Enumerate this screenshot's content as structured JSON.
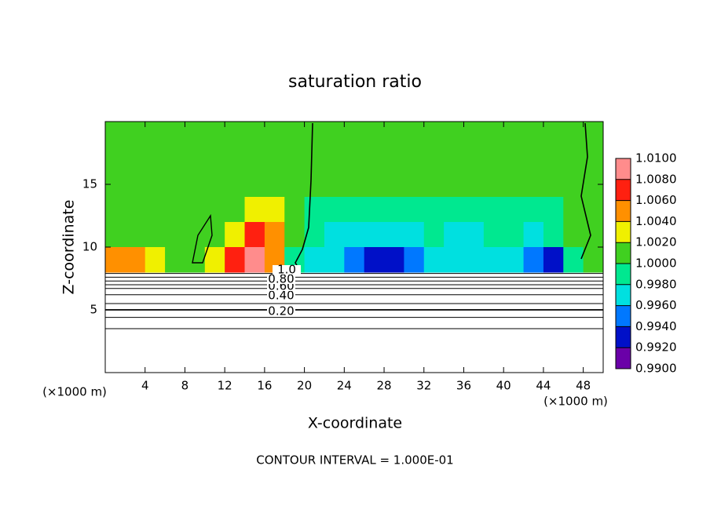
{
  "chart_data": {
    "type": "contour",
    "title": "saturation ratio",
    "x_label": "X-coordinate",
    "y_label": "Z-coordinate",
    "x_unit_left": "(×1000 m)",
    "x_unit_right": "(×1000 m)",
    "footnote": "CONTOUR INTERVAL = 1.000E-01",
    "xlim": [
      0,
      50
    ],
    "ylim": [
      0,
      20
    ],
    "xticks": [
      4,
      8,
      12,
      16,
      20,
      24,
      28,
      32,
      36,
      40,
      44,
      48
    ],
    "yticks": [
      5,
      10,
      15
    ],
    "x": [
      1,
      3,
      5,
      7,
      9,
      11,
      13,
      15,
      17,
      19,
      21,
      23,
      25,
      27,
      29,
      31,
      33,
      35,
      37,
      39,
      41,
      43,
      45,
      47,
      49
    ],
    "y": [
      19,
      17,
      15,
      13,
      11,
      9
    ],
    "z": [
      [
        1.0005,
        1.0005,
        1.0005,
        1.0005,
        1.0005,
        1.0005,
        1.0005,
        1.0005,
        1.0005,
        1.0005,
        1.0005,
        1.0005,
        1.0005,
        1.0005,
        1.0005,
        1.0005,
        1.0005,
        1.0005,
        1.0005,
        1.0005,
        1.0005,
        1.0005,
        1.0005,
        1.0005,
        1.0005
      ],
      [
        1.0005,
        1.0005,
        1.0005,
        1.0005,
        1.0005,
        1.0005,
        1.0005,
        1.0005,
        1.0005,
        1.0005,
        1.0005,
        1.0005,
        1.0005,
        1.0005,
        1.0005,
        1.0005,
        1.0005,
        1.0005,
        1.0005,
        1.0005,
        1.0005,
        1.0005,
        1.0005,
        1.0005,
        1.0005
      ],
      [
        1.0005,
        1.0005,
        1.0005,
        1.0005,
        1.0005,
        1.0005,
        1.001,
        1.0015,
        1.001,
        1.0005,
        1.0005,
        1.0005,
        1.0005,
        1.0005,
        1.0005,
        1.0005,
        1.0005,
        1.0005,
        1.0005,
        1.0005,
        1.0005,
        1.0005,
        1.0005,
        1.0005,
        1.0005
      ],
      [
        1.0005,
        1.0005,
        1.0005,
        1.0005,
        1.0005,
        1.0005,
        1.001,
        1.003,
        1.002,
        1.0005,
        0.9995,
        0.9985,
        0.9985,
        0.9985,
        0.9985,
        0.9995,
        0.9995,
        0.9985,
        0.9995,
        0.9995,
        0.9995,
        0.9995,
        0.9995,
        1.0005,
        1.0005
      ],
      [
        1.0015,
        1.001,
        1.0005,
        1.0005,
        1.0005,
        1.001,
        1.003,
        1.007,
        1.004,
        1.0005,
        0.9985,
        0.9975,
        0.9975,
        0.997,
        0.9975,
        0.9975,
        0.9985,
        0.9975,
        0.9975,
        0.9985,
        0.9985,
        0.9975,
        0.9985,
        1.0005,
        1.0005
      ],
      [
        1.005,
        1.004,
        1.003,
        1.0015,
        1.0005,
        1.002,
        1.006,
        1.0085,
        1.005,
        0.999,
        0.9965,
        0.996,
        0.995,
        0.9935,
        0.993,
        0.9945,
        0.9965,
        0.997,
        0.996,
        0.9975,
        0.997,
        0.9945,
        0.993,
        0.999,
        1.0005
      ]
    ],
    "colorbar_ticks": [
      {
        "value": 0.99,
        "label": "0.9900"
      },
      {
        "value": 0.992,
        "label": "0.9920"
      },
      {
        "value": 0.994,
        "label": "0.9940"
      },
      {
        "value": 0.996,
        "label": "0.9960"
      },
      {
        "value": 0.998,
        "label": "0.9980"
      },
      {
        "value": 1.0,
        "label": "1.0000"
      },
      {
        "value": 1.002,
        "label": "1.0020"
      },
      {
        "value": 1.004,
        "label": "1.0040"
      },
      {
        "value": 1.006,
        "label": "1.0060"
      },
      {
        "value": 1.008,
        "label": "1.0080"
      },
      {
        "value": 1.01,
        "label": "1.0100"
      }
    ],
    "colorbar_colors": [
      "#6a00a8",
      "#0010c8",
      "#0078ff",
      "#00e0e0",
      "#00e890",
      "#40d020",
      "#f0f000",
      "#ff9000",
      "#ff2010",
      "#ff8c8c"
    ],
    "contour_heights": [
      3.5,
      4.4,
      5,
      5.5,
      6.2,
      6.7,
      7.0,
      7.3,
      7.6,
      7.9
    ],
    "contour_labels": [
      {
        "value": 0.2,
        "label": "0.20"
      },
      {
        "value": 0.4,
        "label": "0.40"
      },
      {
        "value": 0.6,
        "label": "0.60"
      },
      {
        "value": 0.8,
        "label": "0.80"
      },
      {
        "value": 1.0,
        "label": "1.0"
      }
    ]
  }
}
